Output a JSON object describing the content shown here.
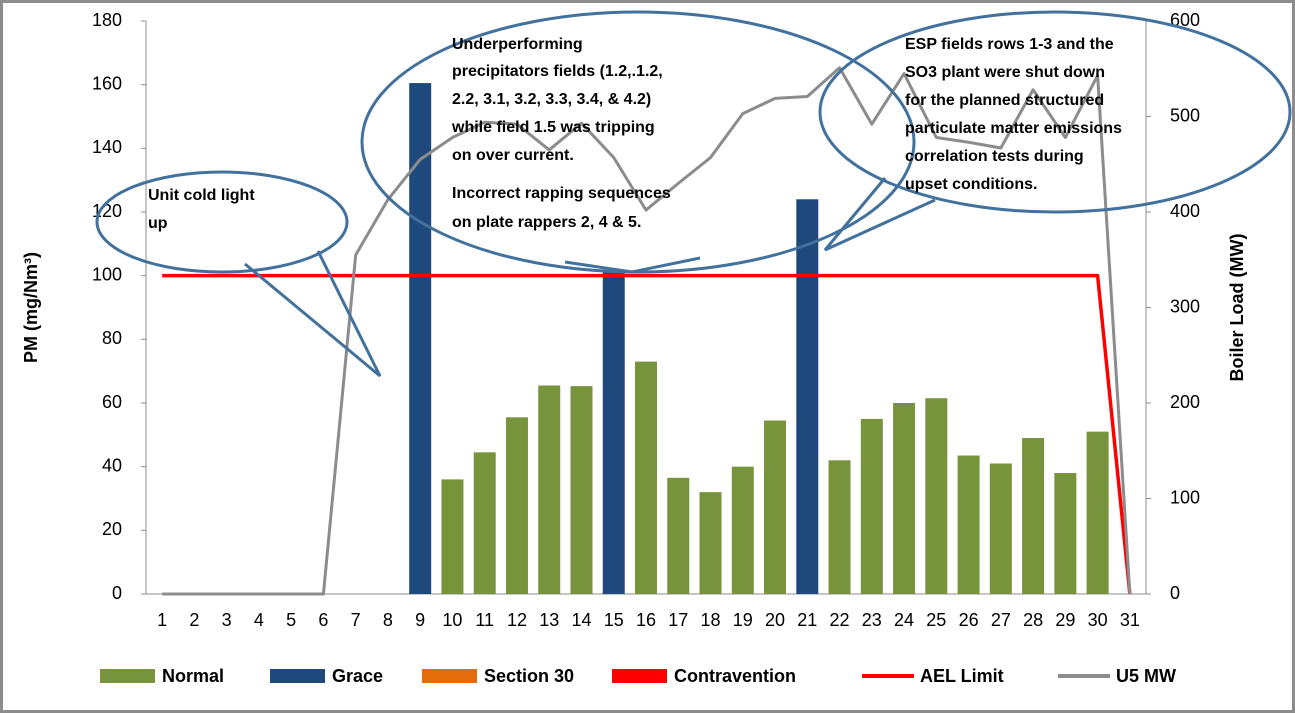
{
  "chart_data": {
    "type": "bar",
    "categories": [
      "1",
      "2",
      "3",
      "4",
      "5",
      "6",
      "7",
      "8",
      "9",
      "10",
      "11",
      "12",
      "13",
      "14",
      "15",
      "16",
      "17",
      "18",
      "19",
      "20",
      "21",
      "22",
      "23",
      "24",
      "25",
      "26",
      "27",
      "28",
      "29",
      "30",
      "31"
    ],
    "ylabel": "PM (mg/Nm³)",
    "y2label": "Boiler Load (MW)",
    "ylim": [
      0,
      180
    ],
    "yticks": [
      0,
      20,
      40,
      60,
      80,
      100,
      120,
      140,
      160,
      180
    ],
    "y2lim": [
      0,
      600
    ],
    "y2ticks": [
      0,
      100,
      200,
      300,
      400,
      500,
      600
    ],
    "grid": false,
    "legend": "bottom",
    "series": [
      {
        "name": "Normal",
        "color": "#77933c",
        "kind": "bar",
        "values": [
          null,
          null,
          null,
          null,
          null,
          null,
          null,
          null,
          null,
          36,
          44.5,
          55.5,
          65.5,
          65.3,
          null,
          73,
          36.5,
          32,
          40,
          54.5,
          null,
          42,
          55,
          60,
          61.5,
          43.5,
          41,
          49,
          38,
          51,
          null
        ]
      },
      {
        "name": "Grace",
        "color": "#1f497d",
        "kind": "bar",
        "values": [
          null,
          null,
          null,
          null,
          null,
          null,
          null,
          null,
          160.5,
          null,
          null,
          null,
          null,
          null,
          101,
          null,
          null,
          null,
          null,
          null,
          124,
          null,
          null,
          null,
          null,
          null,
          null,
          null,
          null,
          null,
          null
        ]
      },
      {
        "name": "Section 30",
        "color": "#e46c0a",
        "kind": "bar",
        "values": [
          null,
          null,
          null,
          null,
          null,
          null,
          null,
          null,
          null,
          null,
          null,
          null,
          null,
          null,
          null,
          null,
          null,
          null,
          null,
          null,
          null,
          null,
          null,
          null,
          null,
          null,
          null,
          null,
          null,
          null,
          null
        ]
      },
      {
        "name": "Contravention",
        "color": "#ff0000",
        "kind": "bar",
        "values": [
          null,
          null,
          null,
          null,
          null,
          null,
          null,
          null,
          null,
          null,
          null,
          null,
          null,
          null,
          null,
          null,
          null,
          null,
          null,
          null,
          null,
          null,
          null,
          null,
          null,
          null,
          null,
          null,
          null,
          null,
          null
        ]
      },
      {
        "name": "AEL Limit",
        "color": "#ff0000",
        "kind": "line",
        "values": [
          100,
          100,
          100,
          100,
          100,
          100,
          100,
          100,
          100,
          100,
          100,
          100,
          100,
          100,
          100,
          100,
          100,
          100,
          100,
          100,
          100,
          100,
          100,
          100,
          100,
          100,
          100,
          100,
          100,
          100,
          0
        ]
      },
      {
        "name": "U5 MW",
        "color": "#8c8c8c",
        "kind": "line",
        "axis": "y2",
        "values": [
          0,
          0,
          0,
          0,
          0,
          0,
          355,
          413,
          455,
          478,
          494,
          492,
          465,
          493,
          457,
          402,
          430,
          457,
          503,
          519,
          521,
          551,
          492,
          545,
          478,
          473,
          467,
          528,
          478,
          543,
          0
        ]
      }
    ],
    "annotations": [
      [
        "Unit cold light",
        "up"
      ],
      [
        "Underperforming",
        "precipitators fields (1.2,.1.2,",
        "2.2, 3.1, 3.2, 3.3, 3.4, & 4.2)",
        "while field 1.5 was tripping",
        "on over current.",
        "Incorrect rapping sequences",
        "on plate rappers 2, 4 & 5."
      ],
      [
        "ESP fields rows 1-3 and the",
        "SO3 plant were shut down",
        "for the planned structured",
        "particulate matter emissions",
        "correlation tests during",
        "upset conditions."
      ]
    ]
  }
}
